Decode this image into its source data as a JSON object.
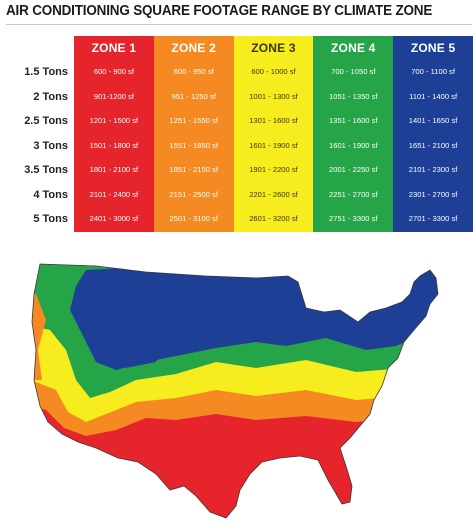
{
  "title": "AIR CONDITIONING SQUARE FOOTAGE RANGE BY CLIMATE ZONE",
  "zones": [
    {
      "label": "ZONE 1",
      "color": "#e5242c"
    },
    {
      "label": "ZONE 2",
      "color": "#f68a22"
    },
    {
      "label": "ZONE 3",
      "color": "#f7ec1d"
    },
    {
      "label": "ZONE 4",
      "color": "#26a448"
    },
    {
      "label": "ZONE 5",
      "color": "#1d3f96"
    }
  ],
  "rows": [
    {
      "tons": "1.5 Tons",
      "values": [
        "600 - 900 sf",
        "600 - 950 sf",
        "600 - 1000 sf",
        "700 - 1050 sf",
        "700 - 1100 sf"
      ]
    },
    {
      "tons": "2 Tons",
      "values": [
        "901-1200 sf",
        "951 - 1250 sf",
        "1001 - 1300 sf",
        "1051 - 1350 sf",
        "1101 - 1400 sf"
      ]
    },
    {
      "tons": "2.5 Tons",
      "values": [
        "1201 - 1500 sf",
        "1251 - 1550 sf",
        "1301 - 1600 sf",
        "1351 - 1600 sf",
        "1401 - 1650 sf"
      ]
    },
    {
      "tons": "3 Tons",
      "values": [
        "1501 - 1800 sf",
        "1551 - 1850 sf",
        "1601 - 1900 sf",
        "1601 - 1900 sf",
        "1651 - 2100 sf"
      ]
    },
    {
      "tons": "3.5 Tons",
      "values": [
        "1801 - 2100 sf",
        "1851 - 2150 sf",
        "1901 - 2200 sf",
        "2001 - 2250 sf",
        "2101 - 2300 sf"
      ]
    },
    {
      "tons": "4 Tons",
      "values": [
        "2101 - 2400 sf",
        "2151 - 2500 sf",
        "2201 - 2600 sf",
        "2251 - 2700 sf",
        "2301 - 2700 sf"
      ]
    },
    {
      "tons": "5 Tons",
      "values": [
        "2401 - 3000 sf",
        "2501 - 3100 sf",
        "2601 - 3200 sf",
        "2751 - 3300 sf",
        "2701 - 3300 sf"
      ]
    }
  ],
  "map": {
    "type": "us-climate-zone-map",
    "colors": [
      "#e5242c",
      "#f68a22",
      "#f7ec1d",
      "#26a448",
      "#1d3f96"
    ]
  }
}
